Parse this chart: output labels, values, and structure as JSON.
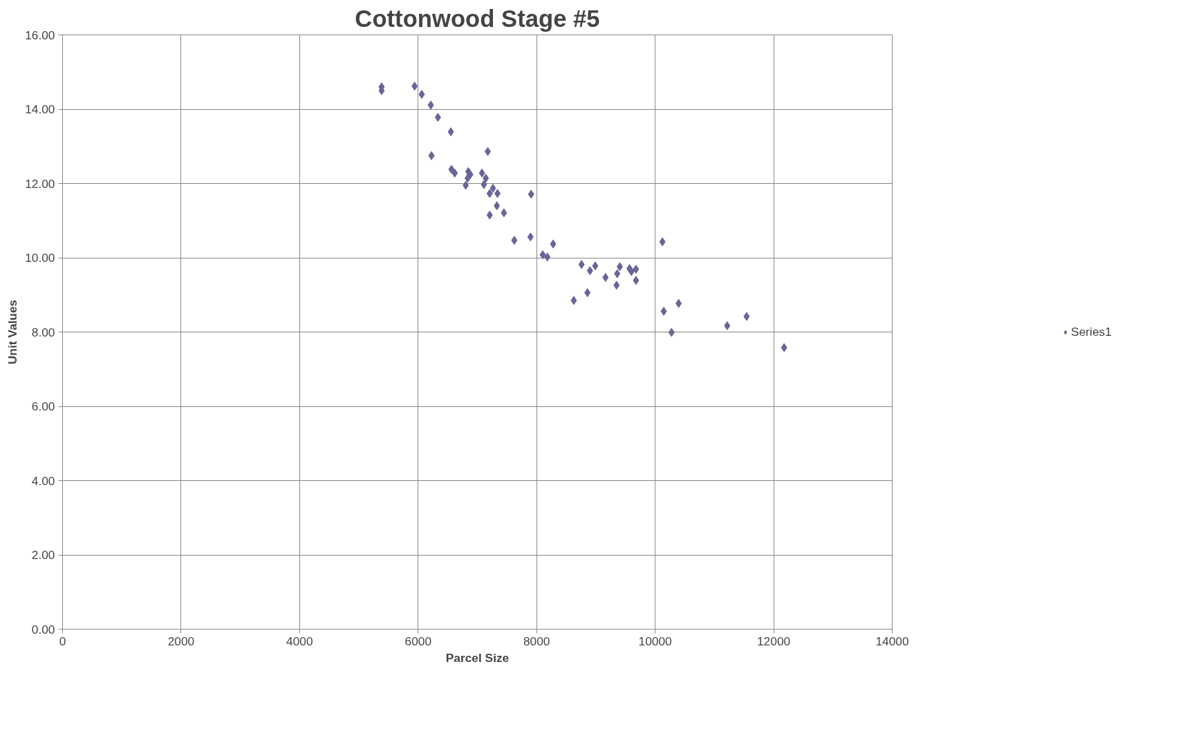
{
  "chart_data": {
    "type": "scatter",
    "title": "Cottonwood Stage #5",
    "xlabel": "Parcel Size",
    "ylabel": "Unit Values",
    "xlim": [
      0,
      14000
    ],
    "xticks": [
      0,
      2000,
      4000,
      6000,
      8000,
      10000,
      12000,
      14000
    ],
    "ylim": [
      0,
      16
    ],
    "yticks": [
      {
        "value": 0,
        "label": "0.00"
      },
      {
        "value": 2,
        "label": "2.00"
      },
      {
        "value": 4,
        "label": "4.00"
      },
      {
        "value": 6,
        "label": "6.00"
      },
      {
        "value": 8,
        "label": "8.00"
      },
      {
        "value": 10,
        "label": "10.00"
      },
      {
        "value": 12,
        "label": "12.00"
      },
      {
        "value": 14,
        "label": "14.00"
      },
      {
        "value": 16,
        "label": "16.00"
      }
    ],
    "grid": true,
    "legend": "right",
    "marker": "diamond",
    "series": [
      {
        "name": "Series1",
        "color": "#666699",
        "x": [
          5384,
          5384,
          5941,
          6061,
          6214,
          6334,
          6552,
          6225,
          7175,
          6563,
          6618,
          6847,
          6880,
          6836,
          6803,
          7077,
          7142,
          7110,
          7262,
          7208,
          7339,
          7328,
          7208,
          7448,
          7907,
          7623,
          7896,
          8278,
          8103,
          8180,
          8758,
          8988,
          8900,
          9403,
          9359,
          9567,
          9676,
          9600,
          9162,
          9348,
          9676,
          8627,
          8857,
          10123,
          10145,
          10396,
          10276,
          11215,
          11543,
          12176
        ],
        "values": [
          14.6,
          14.5,
          14.62,
          14.4,
          14.11,
          13.78,
          13.39,
          12.75,
          12.86,
          12.38,
          12.28,
          12.32,
          12.24,
          12.14,
          11.95,
          12.28,
          12.14,
          11.97,
          11.87,
          11.73,
          11.73,
          11.4,
          11.15,
          11.21,
          11.71,
          10.47,
          10.56,
          10.37,
          10.08,
          10.02,
          9.82,
          9.78,
          9.65,
          9.76,
          9.57,
          9.71,
          9.69,
          9.63,
          9.47,
          9.26,
          9.39,
          8.85,
          9.06,
          10.43,
          8.56,
          8.77,
          7.99,
          8.17,
          8.42,
          7.58
        ]
      }
    ]
  }
}
